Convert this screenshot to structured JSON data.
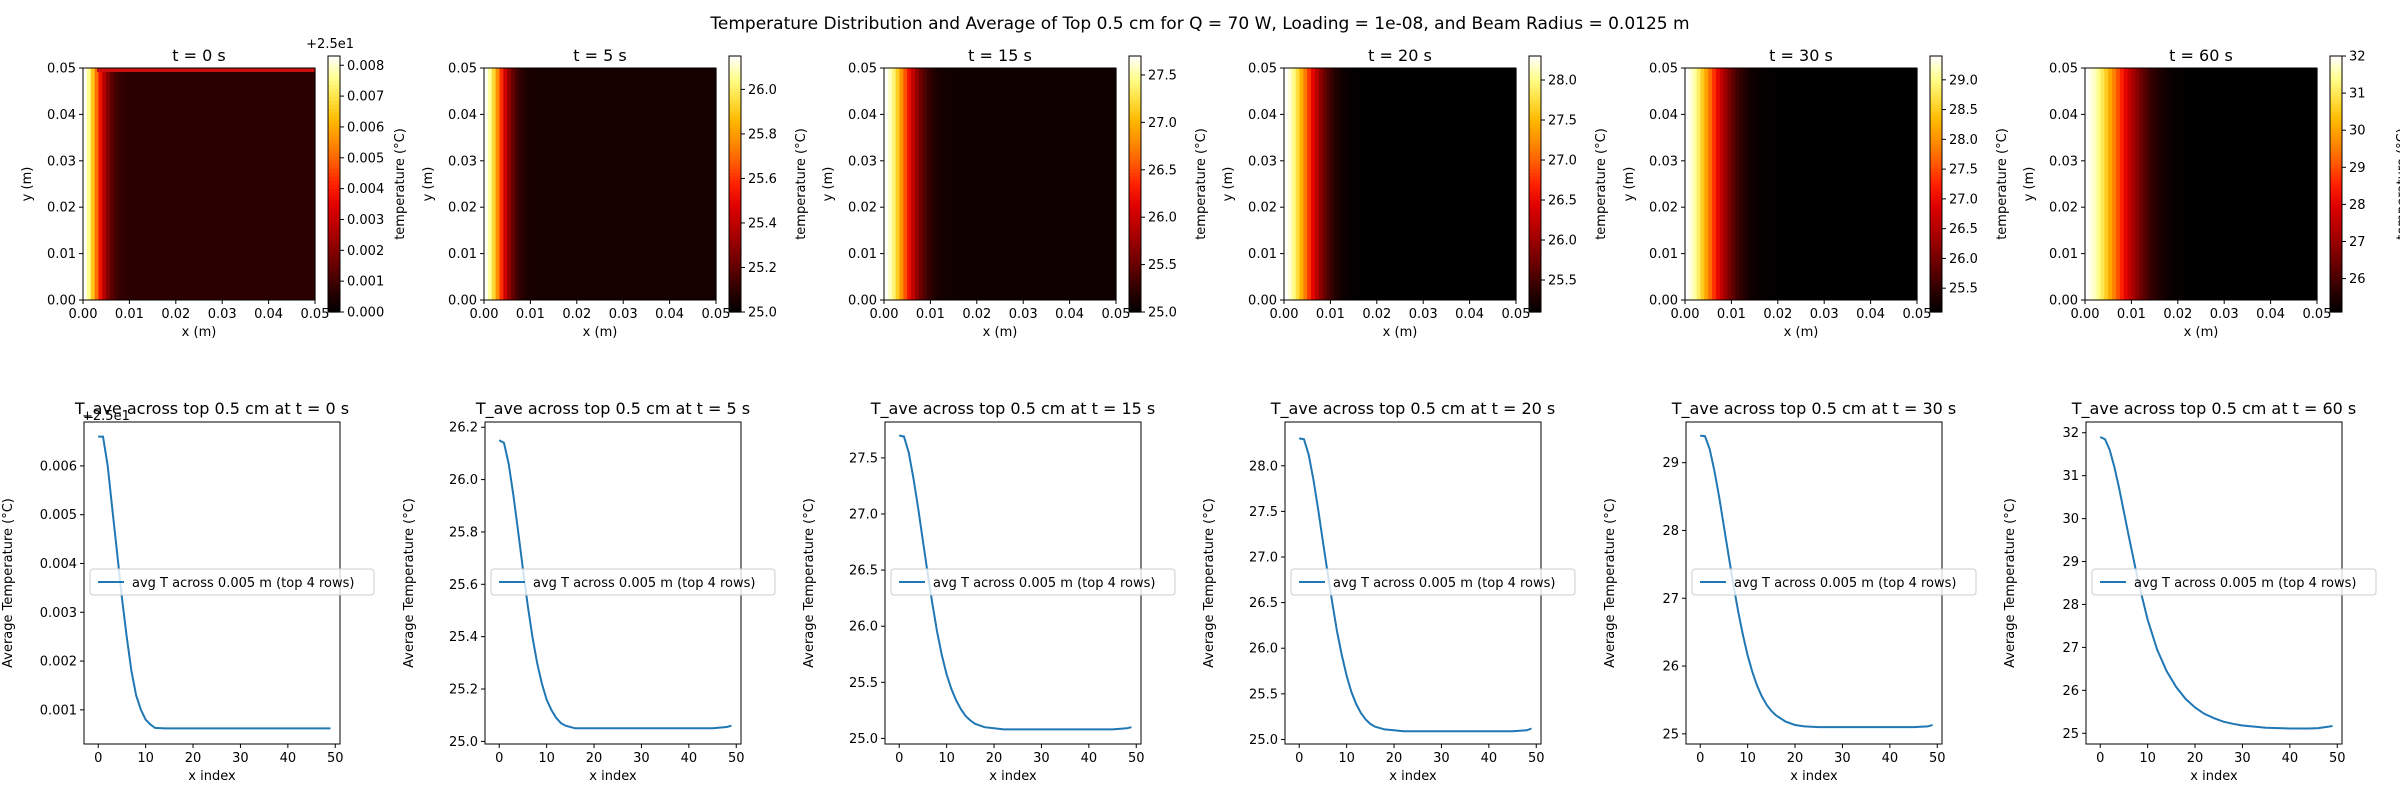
{
  "figure": {
    "suptitle": "Temperature Distribution and Average of Top 0.5 cm for Q = 70 W, Loading = 1e-08, and Beam Radius = 0.0125 m"
  },
  "colormap": [
    "#000000",
    "#2a0000",
    "#5c0000",
    "#8a0000",
    "#b80000",
    "#e00000",
    "#ff2000",
    "#ff5a00",
    "#ff8c00",
    "#ffb800",
    "#ffe040",
    "#ffff90",
    "#ffffff"
  ],
  "line_color": "#1f77b4",
  "heatmaps": [
    {
      "title": "t = 0 s",
      "xlabel": "x (m)",
      "ylabel": "y (m)",
      "xlim": [
        0,
        0.05
      ],
      "ylim": [
        0,
        0.05
      ],
      "xticks": [
        "0.00",
        "0.01",
        "0.02",
        "0.03",
        "0.04",
        "0.05"
      ],
      "yticks": [
        "0.00",
        "0.01",
        "0.02",
        "0.03",
        "0.04",
        "0.05"
      ],
      "colorbar": {
        "label": "temperature (°C)",
        "range": [
          0,
          0.0083
        ],
        "ticks": [
          "0.000",
          "0.001",
          "0.002",
          "0.003",
          "0.004",
          "0.005",
          "0.006",
          "0.007",
          "0.008"
        ],
        "tick_values": [
          0,
          0.001,
          0.002,
          0.003,
          0.004,
          0.005,
          0.006,
          0.007,
          0.008
        ],
        "offset": "+2.5e1"
      },
      "profile": {
        "left": 0.0083,
        "right": 0.0007,
        "decay_x": 0.004,
        "top_row_boost": true
      }
    },
    {
      "title": "t = 5 s",
      "xlabel": "x (m)",
      "ylabel": "y (m)",
      "xlim": [
        0,
        0.05
      ],
      "ylim": [
        0,
        0.05
      ],
      "xticks": [
        "0.00",
        "0.01",
        "0.02",
        "0.03",
        "0.04",
        "0.05"
      ],
      "yticks": [
        "0.00",
        "0.01",
        "0.02",
        "0.03",
        "0.04",
        "0.05"
      ],
      "colorbar": {
        "label": "temperature (°C)",
        "range": [
          25.0,
          26.15
        ],
        "ticks": [
          "25.0",
          "25.2",
          "25.4",
          "25.6",
          "25.8",
          "26.0"
        ],
        "tick_values": [
          25.0,
          25.2,
          25.4,
          25.6,
          25.8,
          26.0
        ],
        "offset": ""
      },
      "profile": {
        "left": 26.15,
        "right": 25.05,
        "decay_x": 0.0045,
        "top_row_boost": false
      }
    },
    {
      "title": "t = 15 s",
      "xlabel": "x (m)",
      "ylabel": "y (m)",
      "xlim": [
        0,
        0.05
      ],
      "ylim": [
        0,
        0.05
      ],
      "xticks": [
        "0.00",
        "0.01",
        "0.02",
        "0.03",
        "0.04",
        "0.05"
      ],
      "yticks": [
        "0.00",
        "0.01",
        "0.02",
        "0.03",
        "0.04",
        "0.05"
      ],
      "colorbar": {
        "label": "temperature (°C)",
        "range": [
          25.0,
          27.7
        ],
        "ticks": [
          "25.0",
          "25.5",
          "26.0",
          "26.5",
          "27.0",
          "27.5"
        ],
        "tick_values": [
          25.0,
          25.5,
          26.0,
          26.5,
          27.0,
          27.5
        ],
        "offset": ""
      },
      "profile": {
        "left": 27.7,
        "right": 25.08,
        "decay_x": 0.006,
        "top_row_boost": false
      }
    },
    {
      "title": "t = 20 s",
      "xlabel": "x (m)",
      "ylabel": "y (m)",
      "xlim": [
        0,
        0.05
      ],
      "ylim": [
        0,
        0.05
      ],
      "xticks": [
        "0.00",
        "0.01",
        "0.02",
        "0.03",
        "0.04",
        "0.05"
      ],
      "yticks": [
        "0.00",
        "0.01",
        "0.02",
        "0.03",
        "0.04",
        "0.05"
      ],
      "colorbar": {
        "label": "temperature (°C)",
        "range": [
          25.1,
          28.3
        ],
        "ticks": [
          "25.5",
          "26.0",
          "26.5",
          "27.0",
          "27.5",
          "28.0"
        ],
        "tick_values": [
          25.5,
          26.0,
          26.5,
          27.0,
          27.5,
          28.0
        ],
        "offset": ""
      },
      "profile": {
        "left": 28.3,
        "right": 25.1,
        "decay_x": 0.0068,
        "top_row_boost": false
      }
    },
    {
      "title": "t = 30 s",
      "xlabel": "x (m)",
      "ylabel": "y (m)",
      "xlim": [
        0,
        0.05
      ],
      "ylim": [
        0,
        0.05
      ],
      "xticks": [
        "0.00",
        "0.01",
        "0.02",
        "0.03",
        "0.04",
        "0.05"
      ],
      "yticks": [
        "0.00",
        "0.01",
        "0.02",
        "0.03",
        "0.04",
        "0.05"
      ],
      "colorbar": {
        "label": "temperature (°C)",
        "range": [
          25.1,
          29.4
        ],
        "ticks": [
          "25.5",
          "26.0",
          "26.5",
          "27.0",
          "27.5",
          "28.0",
          "28.5",
          "29.0"
        ],
        "tick_values": [
          25.5,
          26.0,
          26.5,
          27.0,
          27.5,
          28.0,
          28.5,
          29.0
        ],
        "offset": ""
      },
      "profile": {
        "left": 29.4,
        "right": 25.1,
        "decay_x": 0.0078,
        "top_row_boost": false
      }
    },
    {
      "title": "t = 60 s",
      "xlabel": "x (m)",
      "ylabel": "y (m)",
      "xlim": [
        0,
        0.05
      ],
      "ylim": [
        0,
        0.05
      ],
      "xticks": [
        "0.00",
        "0.01",
        "0.02",
        "0.03",
        "0.04",
        "0.05"
      ],
      "yticks": [
        "0.00",
        "0.01",
        "0.02",
        "0.03",
        "0.04",
        "0.05"
      ],
      "colorbar": {
        "label": "temperature (°C)",
        "range": [
          25.1,
          32.0
        ],
        "ticks": [
          "26",
          "27",
          "28",
          "29",
          "30",
          "31",
          "32"
        ],
        "tick_values": [
          26,
          27,
          28,
          29,
          30,
          31,
          32
        ],
        "offset": ""
      },
      "profile": {
        "left": 32.0,
        "right": 25.1,
        "decay_x": 0.0095,
        "top_row_boost": false
      }
    }
  ],
  "chart_data": [
    {
      "type": "line",
      "title": "T_ave across top 0.5 cm at t = 0 s",
      "xlabel": "x index",
      "ylabel": "Average Temperature (°C)",
      "offset": "+2.5e1",
      "xlim": [
        -3,
        51
      ],
      "ylim": [
        0.0003,
        0.0069
      ],
      "xticks": [
        0,
        10,
        20,
        30,
        40,
        50
      ],
      "yticks": [
        0.001,
        0.002,
        0.003,
        0.004,
        0.005,
        0.006
      ],
      "ytick_labels": [
        "0.001",
        "0.002",
        "0.003",
        "0.004",
        "0.005",
        "0.006"
      ],
      "legend": "center-left",
      "series": [
        {
          "name": "avg T across 0.005 m (top 4 rows)",
          "x": [
            0,
            1,
            2,
            3,
            4,
            5,
            6,
            7,
            8,
            9,
            10,
            11,
            12,
            14,
            16,
            20,
            25,
            30,
            35,
            40,
            45,
            49
          ],
          "y": [
            0.0066,
            0.0066,
            0.006,
            0.0051,
            0.0042,
            0.0033,
            0.0025,
            0.0018,
            0.0013,
            0.001,
            0.0008,
            0.0007,
            0.00063,
            0.00062,
            0.00062,
            0.00062,
            0.00062,
            0.00062,
            0.00062,
            0.00062,
            0.00062,
            0.00062
          ]
        }
      ]
    },
    {
      "type": "line",
      "title": "T_ave across top 0.5 cm at t = 5 s",
      "xlabel": "x index",
      "ylabel": "Average Temperature (°C)",
      "offset": "",
      "xlim": [
        -3,
        51
      ],
      "ylim": [
        24.99,
        26.22
      ],
      "xticks": [
        0,
        10,
        20,
        30,
        40,
        50
      ],
      "yticks": [
        25.0,
        25.2,
        25.4,
        25.6,
        25.8,
        26.0,
        26.2
      ],
      "ytick_labels": [
        "25.0",
        "25.2",
        "25.4",
        "25.6",
        "25.8",
        "26.0",
        "26.2"
      ],
      "legend": "center-left",
      "series": [
        {
          "name": "avg T across 0.005 m (top 4 rows)",
          "x": [
            0,
            1,
            2,
            3,
            4,
            5,
            6,
            7,
            8,
            9,
            10,
            11,
            12,
            13,
            14,
            16,
            18,
            20,
            25,
            30,
            35,
            40,
            45,
            48,
            49
          ],
          "y": [
            26.15,
            26.14,
            26.06,
            25.94,
            25.8,
            25.66,
            25.52,
            25.4,
            25.3,
            25.22,
            25.16,
            25.12,
            25.09,
            25.07,
            25.06,
            25.05,
            25.05,
            25.05,
            25.05,
            25.05,
            25.05,
            25.05,
            25.05,
            25.055,
            25.06
          ]
        }
      ]
    },
    {
      "type": "line",
      "title": "T_ave across top 0.5 cm at t = 15 s",
      "xlabel": "x index",
      "ylabel": "Average Temperature (°C)",
      "offset": "",
      "xlim": [
        -3,
        51
      ],
      "ylim": [
        24.95,
        27.82
      ],
      "xticks": [
        0,
        10,
        20,
        30,
        40,
        50
      ],
      "yticks": [
        25.0,
        25.5,
        26.0,
        26.5,
        27.0,
        27.5
      ],
      "ytick_labels": [
        "25.0",
        "25.5",
        "26.0",
        "26.5",
        "27.0",
        "27.5"
      ],
      "legend": "center-left",
      "series": [
        {
          "name": "avg T across 0.005 m (top 4 rows)",
          "x": [
            0,
            1,
            2,
            3,
            4,
            5,
            6,
            7,
            8,
            9,
            10,
            11,
            12,
            13,
            14,
            15,
            16,
            18,
            20,
            22,
            25,
            30,
            35,
            40,
            45,
            48,
            49
          ],
          "y": [
            27.7,
            27.69,
            27.55,
            27.32,
            27.05,
            26.76,
            26.47,
            26.2,
            25.95,
            25.74,
            25.57,
            25.44,
            25.34,
            25.26,
            25.2,
            25.16,
            25.13,
            25.1,
            25.09,
            25.08,
            25.08,
            25.08,
            25.08,
            25.08,
            25.08,
            25.09,
            25.1
          ]
        }
      ]
    },
    {
      "type": "line",
      "title": "T_ave across top 0.5 cm at t = 20 s",
      "xlabel": "x index",
      "ylabel": "Average Temperature (°C)",
      "offset": "",
      "xlim": [
        -3,
        51
      ],
      "ylim": [
        24.95,
        28.48
      ],
      "xticks": [
        0,
        10,
        20,
        30,
        40,
        50
      ],
      "yticks": [
        25.0,
        25.5,
        26.0,
        26.5,
        27.0,
        27.5,
        28.0
      ],
      "ytick_labels": [
        "25.0",
        "25.5",
        "26.0",
        "26.5",
        "27.0",
        "27.5",
        "28.0"
      ],
      "legend": "center-left",
      "series": [
        {
          "name": "avg T across 0.005 m (top 4 rows)",
          "x": [
            0,
            1,
            2,
            3,
            4,
            5,
            6,
            7,
            8,
            9,
            10,
            11,
            12,
            13,
            14,
            15,
            16,
            18,
            20,
            22,
            25,
            30,
            35,
            40,
            45,
            48,
            49
          ],
          "y": [
            28.3,
            28.29,
            28.12,
            27.85,
            27.52,
            27.17,
            26.82,
            26.49,
            26.18,
            25.92,
            25.7,
            25.52,
            25.39,
            25.29,
            25.22,
            25.17,
            25.14,
            25.11,
            25.1,
            25.09,
            25.09,
            25.09,
            25.09,
            25.09,
            25.09,
            25.1,
            25.12
          ]
        }
      ]
    },
    {
      "type": "line",
      "title": "T_ave across top 0.5 cm at t = 30 s",
      "xlabel": "x index",
      "ylabel": "Average Temperature (°C)",
      "offset": "",
      "xlim": [
        -3,
        51
      ],
      "ylim": [
        24.85,
        29.6
      ],
      "xticks": [
        0,
        10,
        20,
        30,
        40,
        50
      ],
      "yticks": [
        25,
        26,
        27,
        28,
        29
      ],
      "ytick_labels": [
        "25",
        "26",
        "27",
        "28",
        "29"
      ],
      "legend": "center-left",
      "series": [
        {
          "name": "avg T across 0.005 m (top 4 rows)",
          "x": [
            0,
            1,
            2,
            3,
            4,
            5,
            6,
            7,
            8,
            9,
            10,
            11,
            12,
            13,
            14,
            15,
            16,
            18,
            20,
            22,
            25,
            30,
            35,
            40,
            45,
            48,
            49
          ],
          "y": [
            29.4,
            29.39,
            29.2,
            28.88,
            28.49,
            28.06,
            27.62,
            27.2,
            26.81,
            26.46,
            26.16,
            25.91,
            25.71,
            25.55,
            25.43,
            25.34,
            25.27,
            25.18,
            25.13,
            25.11,
            25.1,
            25.1,
            25.1,
            25.1,
            25.1,
            25.11,
            25.13
          ]
        }
      ]
    },
    {
      "type": "line",
      "title": "T_ave across top 0.5 cm at t = 60 s",
      "xlabel": "x index",
      "ylabel": "Average Temperature (°C)",
      "offset": "",
      "xlim": [
        -3,
        51
      ],
      "ylim": [
        24.75,
        32.25
      ],
      "xticks": [
        0,
        10,
        20,
        30,
        40,
        50
      ],
      "yticks": [
        25,
        26,
        27,
        28,
        29,
        30,
        31,
        32
      ],
      "ytick_labels": [
        "25",
        "26",
        "27",
        "28",
        "29",
        "30",
        "31",
        "32"
      ],
      "legend": "center-left",
      "series": [
        {
          "name": "avg T across 0.005 m (top 4 rows)",
          "x": [
            0,
            1,
            2,
            3,
            4,
            6,
            8,
            10,
            12,
            14,
            16,
            18,
            20,
            22,
            24,
            26,
            28,
            30,
            35,
            40,
            44,
            46,
            48,
            49
          ],
          "y": [
            31.9,
            31.85,
            31.6,
            31.2,
            30.7,
            29.6,
            28.55,
            27.65,
            26.95,
            26.45,
            26.08,
            25.8,
            25.6,
            25.45,
            25.35,
            25.27,
            25.22,
            25.18,
            25.13,
            25.11,
            25.11,
            25.12,
            25.15,
            25.17
          ]
        }
      ]
    }
  ]
}
